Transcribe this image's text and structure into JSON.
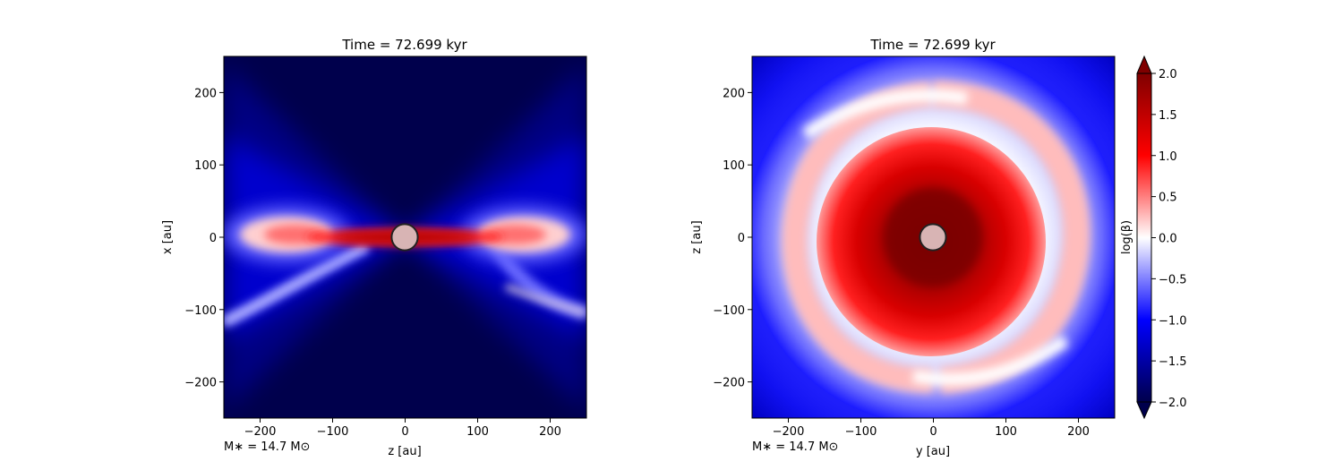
{
  "chart_data": [
    {
      "type": "heatmap",
      "title": "Time = 72.699 kyr",
      "xlabel": "z [au]",
      "ylabel": "x [au]",
      "xlim": [
        -250,
        250
      ],
      "ylim": [
        -250,
        250
      ],
      "xticks": [
        -200,
        -100,
        0,
        100,
        200
      ],
      "yticks": [
        -200,
        -100,
        0,
        100,
        200
      ],
      "xtick_labels": [
        "−200",
        "−100",
        "0",
        "100",
        "200"
      ],
      "ytick_labels": [
        "−200",
        "−100",
        "0",
        "100",
        "200"
      ],
      "annotation": "M∗ = 14.7 M⊙",
      "description_values": {
        "max_log_beta_midplane": 2.0,
        "background_log_beta": -2.0
      },
      "star_radius_au": 18
    },
    {
      "type": "heatmap",
      "title": "Time = 72.699 kyr",
      "xlabel": "y [au]",
      "ylabel": "z [au]",
      "xlim": [
        -250,
        250
      ],
      "ylim": [
        -250,
        250
      ],
      "xticks": [
        -200,
        -100,
        0,
        100,
        200
      ],
      "yticks": [
        -200,
        -100,
        0,
        100,
        200
      ],
      "xtick_labels": [
        "−200",
        "−100",
        "0",
        "100",
        "200"
      ],
      "ytick_labels": [
        "−200",
        "−100",
        "0",
        "100",
        "200"
      ],
      "annotation": "M∗ = 14.7 M⊙",
      "star_radius_au": 18
    }
  ],
  "colorbar": {
    "label": "log(β)",
    "range": [
      -2.0,
      2.0
    ],
    "ticks": [
      2.0,
      1.5,
      1.0,
      0.5,
      0.0,
      -0.5,
      -1.0,
      -1.5,
      -2.0
    ],
    "tick_labels": [
      "2.0",
      "1.5",
      "1.0",
      "0.5",
      "0.0",
      "−0.5",
      "−1.0",
      "−1.5",
      "−2.0"
    ],
    "colormap": [
      "#00004c",
      "#0000ff",
      "#ffffff",
      "#ff0000",
      "#800000"
    ],
    "extend": "both"
  }
}
